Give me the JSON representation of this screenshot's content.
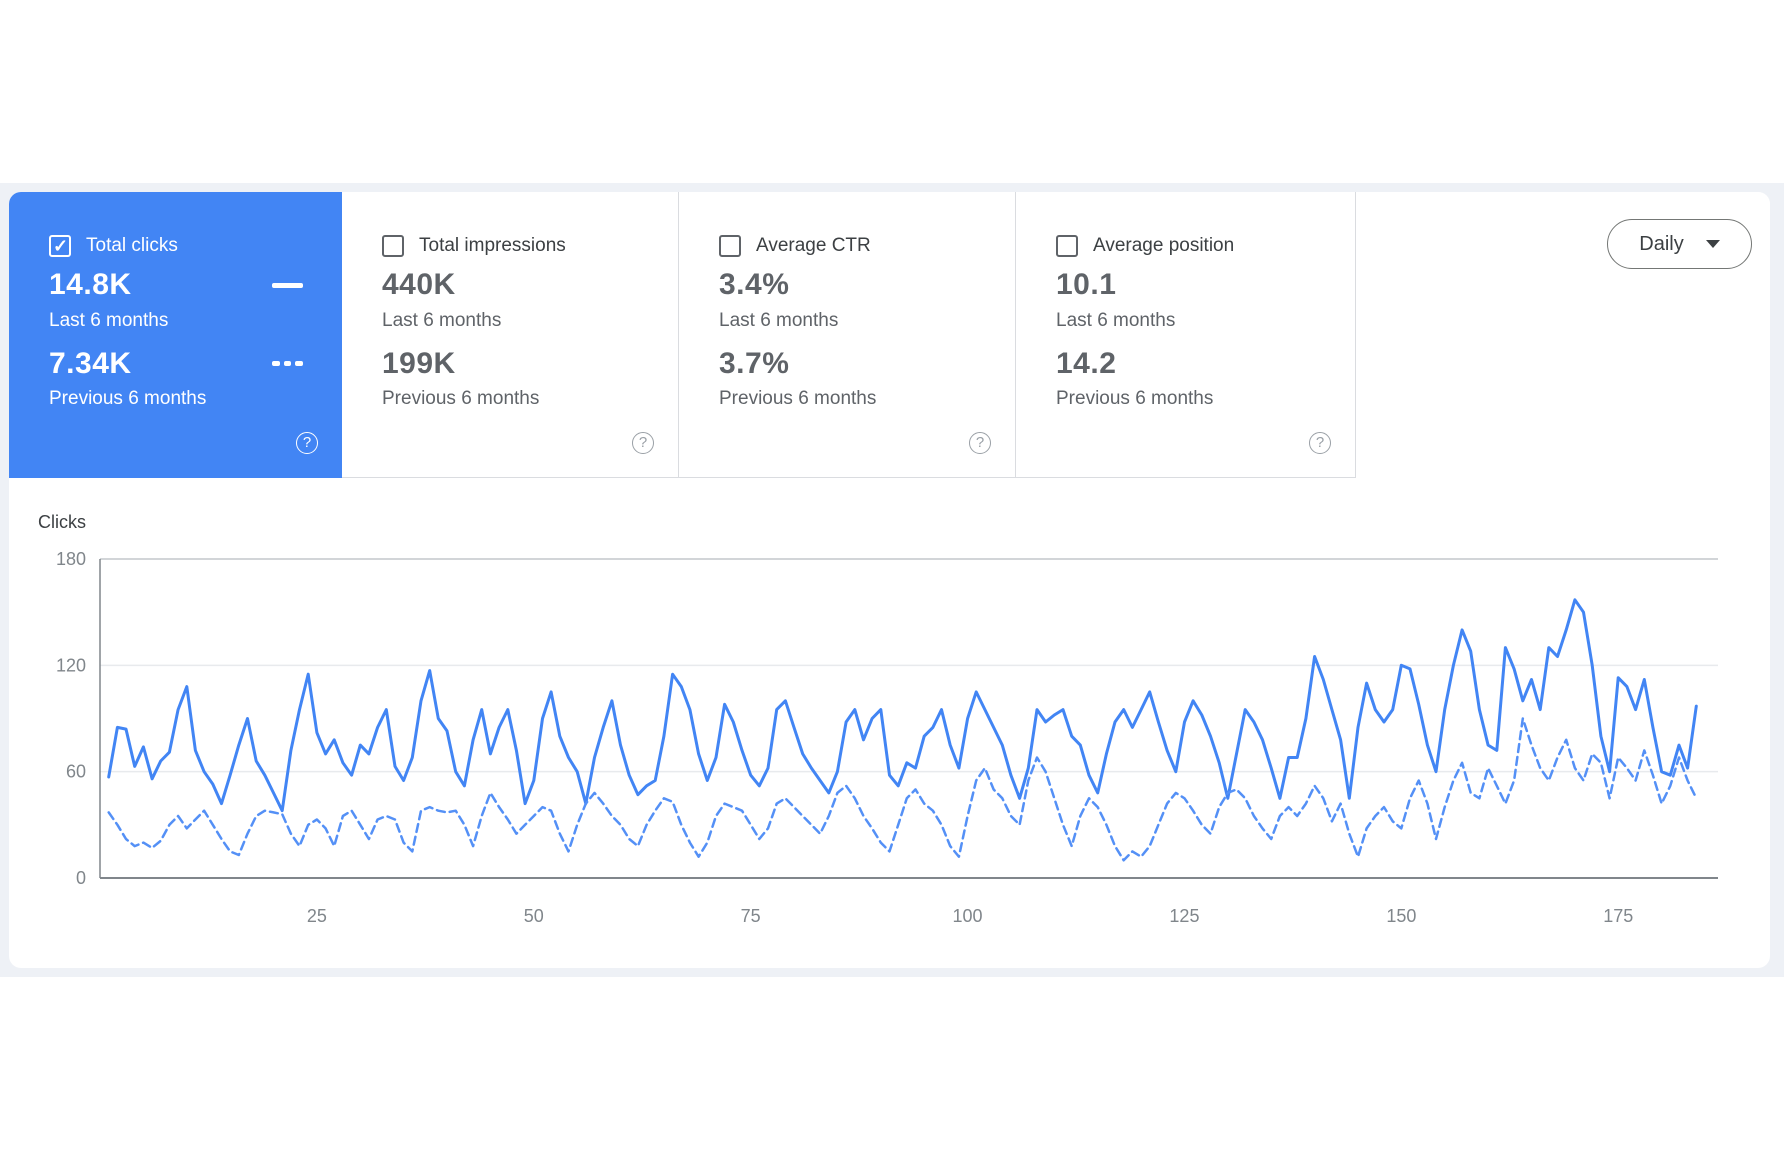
{
  "cards": [
    {
      "label": "Total clicks",
      "checked": true,
      "selected": true,
      "value_current": "14.8K",
      "period_current": "Last 6 months",
      "value_previous": "7.34K",
      "period_previous": "Previous 6 months"
    },
    {
      "label": "Total impressions",
      "checked": false,
      "selected": false,
      "value_current": "440K",
      "period_current": "Last 6 months",
      "value_previous": "199K",
      "period_previous": "Previous 6 months"
    },
    {
      "label": "Average CTR",
      "checked": false,
      "selected": false,
      "value_current": "3.4%",
      "period_current": "Last 6 months",
      "value_previous": "3.7%",
      "period_previous": "Previous 6 months"
    },
    {
      "label": "Average position",
      "checked": false,
      "selected": false,
      "value_current": "10.1",
      "period_current": "Last 6 months",
      "value_previous": "14.2",
      "period_previous": "Previous 6 months"
    }
  ],
  "toolbar": {
    "granularity": "Daily"
  },
  "colors": {
    "accent_blue": "#4285f4",
    "dashed_blue": "#5490f6",
    "grid_light": "#e8eaed",
    "grid_top": "#c4c7cc",
    "axis_gray": "#80868b",
    "tick_text": "#80868b",
    "page_band": "#eef1f6"
  },
  "chart_data": {
    "type": "line",
    "ylabel": "Clicks",
    "y_ticks": [
      180,
      120,
      60,
      0
    ],
    "x_ticks": [
      25,
      50,
      75,
      100,
      125,
      150,
      175
    ],
    "ylim": [
      0,
      180
    ],
    "xlim": [
      0,
      186.5
    ],
    "grid": "horizontal",
    "legend_position": "none",
    "series": [
      {
        "name": "Last 6 months",
        "style": "solid",
        "x_start": 1,
        "values": [
          57,
          85,
          84,
          63,
          74,
          56,
          66,
          71,
          95,
          108,
          72,
          60,
          53,
          42,
          58,
          75,
          90,
          66,
          58,
          48,
          38,
          72,
          95,
          115,
          82,
          70,
          78,
          65,
          58,
          75,
          70,
          85,
          95,
          63,
          55,
          68,
          100,
          117,
          90,
          83,
          60,
          52,
          78,
          95,
          70,
          85,
          95,
          72,
          42,
          55,
          90,
          105,
          80,
          68,
          60,
          42,
          68,
          85,
          100,
          75,
          58,
          47,
          52,
          55,
          80,
          115,
          108,
          95,
          70,
          55,
          68,
          98,
          88,
          72,
          58,
          52,
          62,
          95,
          100,
          85,
          70,
          62,
          55,
          48,
          60,
          88,
          95,
          78,
          90,
          95,
          58,
          52,
          65,
          62,
          80,
          85,
          95,
          75,
          62,
          90,
          105,
          95,
          85,
          75,
          58,
          45,
          62,
          95,
          88,
          92,
          95,
          80,
          75,
          58,
          48,
          70,
          88,
          95,
          85,
          95,
          105,
          88,
          72,
          60,
          88,
          100,
          92,
          80,
          65,
          45,
          70,
          95,
          88,
          78,
          62,
          45,
          68,
          68,
          90,
          125,
          112,
          95,
          78,
          45,
          85,
          110,
          95,
          88,
          95,
          120,
          118,
          98,
          75,
          60,
          95,
          120,
          140,
          128,
          95,
          75,
          72,
          130,
          118,
          100,
          112,
          95,
          130,
          125,
          140,
          157,
          150,
          120,
          80,
          60,
          113,
          108,
          95,
          112,
          85,
          60,
          58,
          75,
          62,
          97
        ]
      },
      {
        "name": "Previous 6 months",
        "style": "dashed",
        "x_start": 1,
        "values": [
          37,
          30,
          22,
          18,
          20,
          17,
          21,
          30,
          35,
          28,
          33,
          38,
          30,
          22,
          15,
          13,
          25,
          35,
          38,
          37,
          36,
          25,
          18,
          30,
          33,
          28,
          18,
          35,
          38,
          30,
          22,
          33,
          35,
          33,
          20,
          15,
          38,
          40,
          38,
          37,
          38,
          30,
          18,
          35,
          48,
          40,
          33,
          25,
          30,
          35,
          40,
          38,
          25,
          15,
          30,
          42,
          48,
          42,
          35,
          30,
          22,
          18,
          30,
          38,
          45,
          43,
          30,
          20,
          12,
          20,
          35,
          42,
          40,
          38,
          30,
          22,
          28,
          42,
          45,
          40,
          35,
          30,
          25,
          35,
          48,
          52,
          45,
          35,
          28,
          20,
          15,
          30,
          45,
          50,
          42,
          38,
          30,
          18,
          12,
          35,
          55,
          62,
          50,
          45,
          35,
          30,
          55,
          68,
          60,
          45,
          30,
          18,
          35,
          45,
          40,
          30,
          18,
          10,
          15,
          12,
          18,
          30,
          42,
          48,
          45,
          38,
          30,
          25,
          40,
          48,
          50,
          45,
          35,
          28,
          22,
          35,
          40,
          35,
          42,
          52,
          45,
          32,
          42,
          25,
          12,
          28,
          35,
          40,
          32,
          28,
          45,
          55,
          42,
          22,
          40,
          55,
          65,
          48,
          45,
          62,
          52,
          42,
          55,
          90,
          75,
          62,
          55,
          68,
          78,
          62,
          55,
          70,
          65,
          45,
          68,
          62,
          55,
          72,
          58,
          42,
          52,
          68,
          55,
          45
        ]
      }
    ]
  }
}
